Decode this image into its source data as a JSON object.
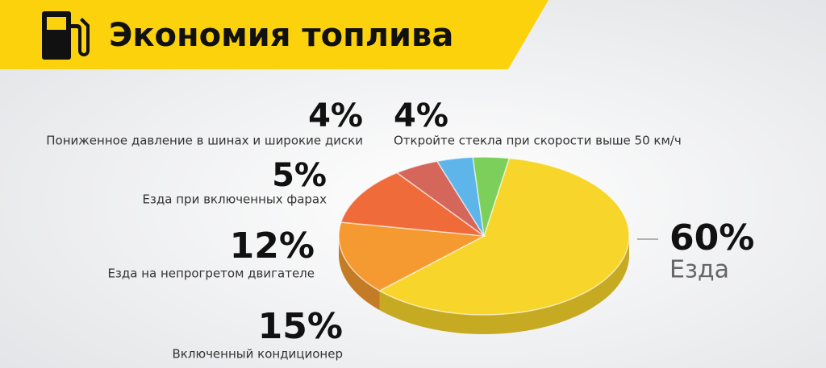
{
  "chart_data": {
    "type": "pie",
    "title": "Экономия топлива",
    "categories": [
      "Езда",
      "Включенный кондиционер",
      "Езда на непрогретом двигателе",
      "Езда при включенных фарах",
      "Пониженное давление в шинах и широкие диски",
      "Откройте стекла при скорости выше 50 км/ч"
    ],
    "values": [
      60,
      15,
      12,
      5,
      4,
      4
    ],
    "value_labels": [
      "60%",
      "15%",
      "12%",
      "5%",
      "4%",
      "4%"
    ],
    "colors": [
      "#f7d52a",
      "#f59a30",
      "#ef6b3a",
      "#d4675a",
      "#5db5ea",
      "#7ccf5b"
    ]
  }
}
